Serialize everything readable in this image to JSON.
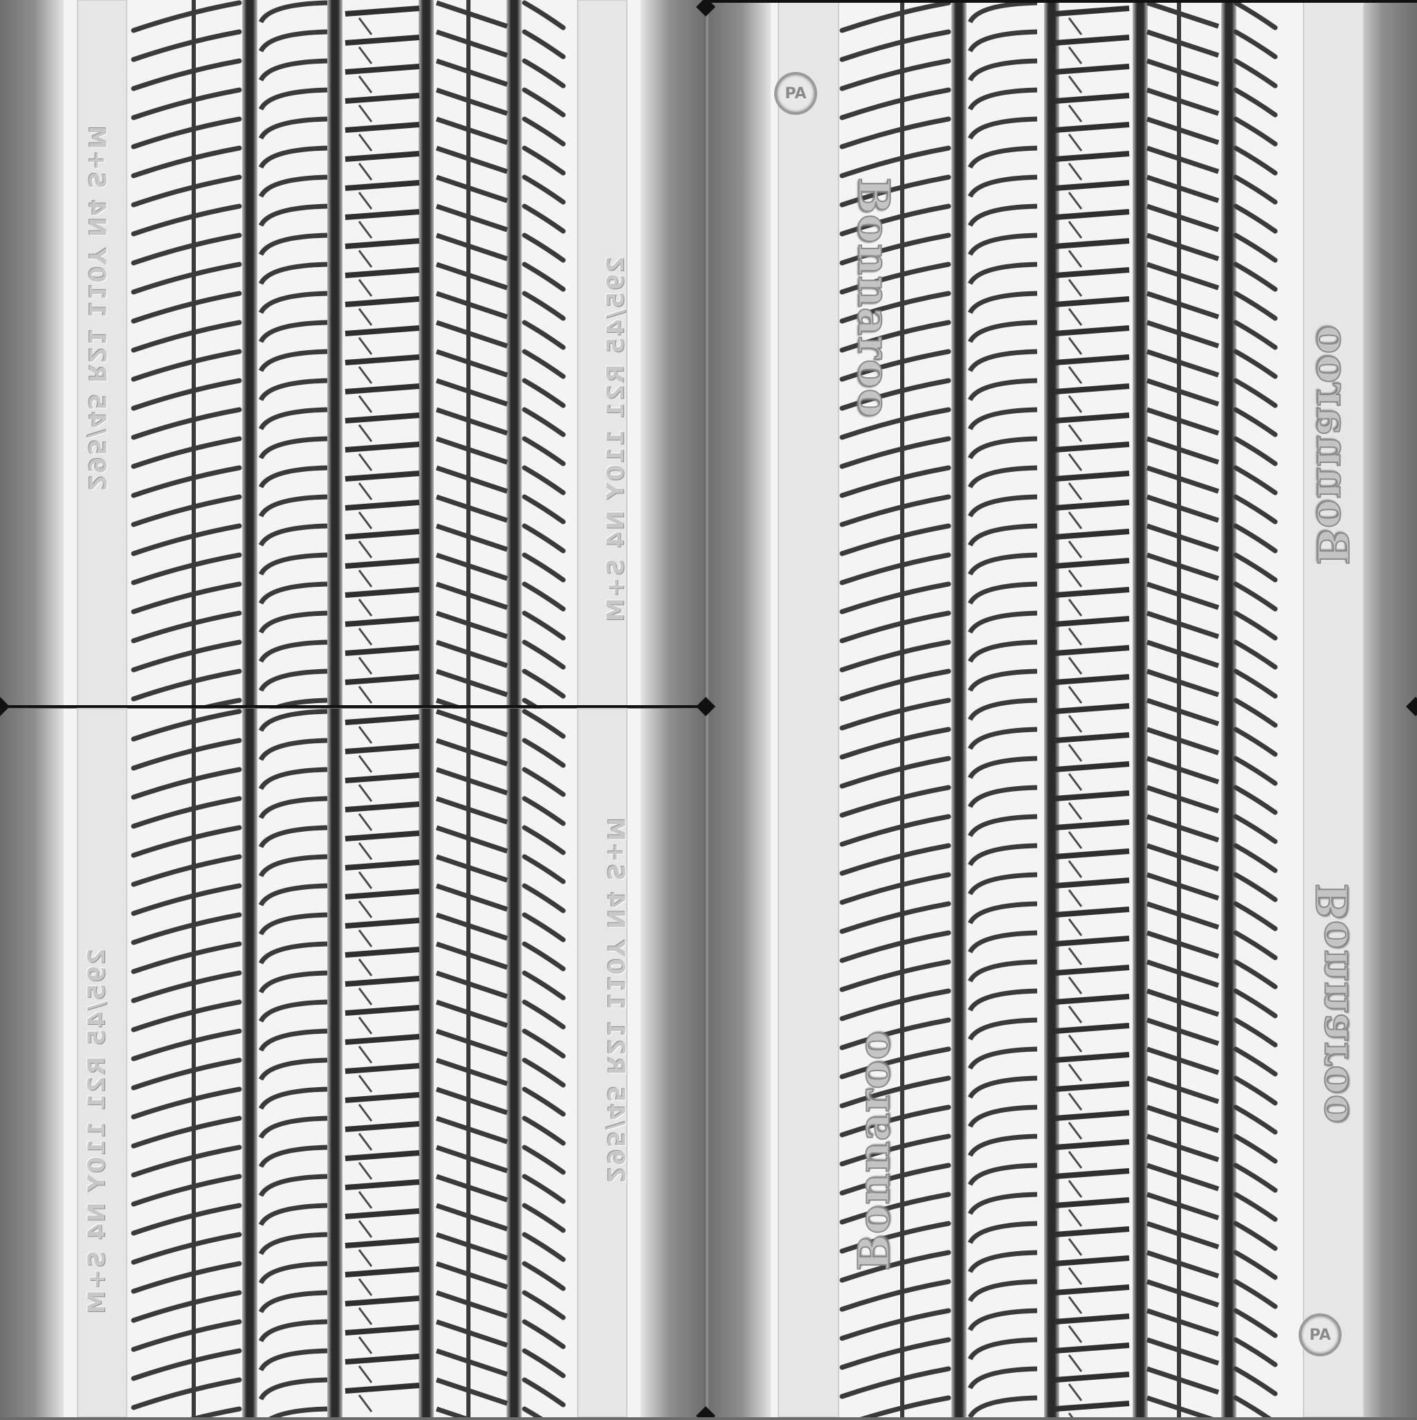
{
  "texture": {
    "sidewall_size_label": "295/45 R21 110Y N4 S+M",
    "brand_label": "Bonnaroo",
    "badge_label": "PA",
    "colors": {
      "background": "#6b6b6b",
      "groove": "#2a2a2a",
      "rib": "#f4f4f4",
      "sidewall": "#e6e6e6",
      "seam": "#111111"
    }
  }
}
